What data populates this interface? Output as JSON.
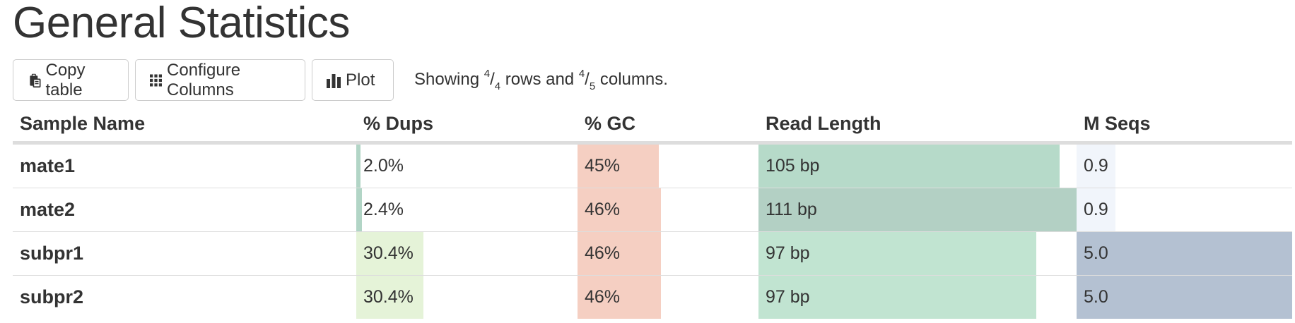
{
  "title": "General Statistics",
  "toolbar": {
    "copy_label": "Copy table",
    "configure_label": "Configure Columns",
    "plot_label": "Plot",
    "showing_prefix": "Showing",
    "rows_shown": "4",
    "rows_total": "4",
    "rows_word": "rows and",
    "cols_shown": "4",
    "cols_total": "5",
    "cols_word": "columns."
  },
  "columns": [
    "Sample Name",
    "% Dups",
    "% GC",
    "Read Length",
    "M Seqs"
  ],
  "rows": [
    {
      "name": "mate1",
      "dups": {
        "text": "2.0%",
        "value": 2.0,
        "color": "#b2d5c6"
      },
      "gc": {
        "text": "45%",
        "value": 45,
        "color": "#f5cfc2"
      },
      "read_length": {
        "text": "105 bp",
        "value": 105,
        "color": "#b6dac9"
      },
      "m_seqs": {
        "text": "0.9",
        "value": 0.9,
        "color": "#f1f5fb"
      }
    },
    {
      "name": "mate2",
      "dups": {
        "text": "2.4%",
        "value": 2.4,
        "color": "#b2d5c6"
      },
      "gc": {
        "text": "46%",
        "value": 46,
        "color": "#f5cfc2"
      },
      "read_length": {
        "text": "111 bp",
        "value": 111,
        "color": "#b3d0c4"
      },
      "m_seqs": {
        "text": "0.9",
        "value": 0.9,
        "color": "#f1f5fb"
      }
    },
    {
      "name": "subpr1",
      "dups": {
        "text": "30.4%",
        "value": 30.4,
        "color": "#e5f3d8"
      },
      "gc": {
        "text": "46%",
        "value": 46,
        "color": "#f5cfc2"
      },
      "read_length": {
        "text": "97 bp",
        "value": 97,
        "color": "#c1e4d1"
      },
      "m_seqs": {
        "text": "5.0",
        "value": 5.0,
        "color": "#b4c1d2"
      }
    },
    {
      "name": "subpr2",
      "dups": {
        "text": "30.4%",
        "value": 30.4,
        "color": "#e5f3d8"
      },
      "gc": {
        "text": "46%",
        "value": 46,
        "color": "#f5cfc2"
      },
      "read_length": {
        "text": "97 bp",
        "value": 97,
        "color": "#c1e4d1"
      },
      "m_seqs": {
        "text": "5.0",
        "value": 5.0,
        "color": "#b4c1d2"
      }
    }
  ],
  "scales": {
    "dups_max": 100,
    "gc_max": 100,
    "read_length_max": 111,
    "m_seqs_max": 5.0
  },
  "icons": {
    "copy": "clipboard-copy-icon",
    "configure": "grid-icon",
    "plot": "bar-chart-icon"
  }
}
